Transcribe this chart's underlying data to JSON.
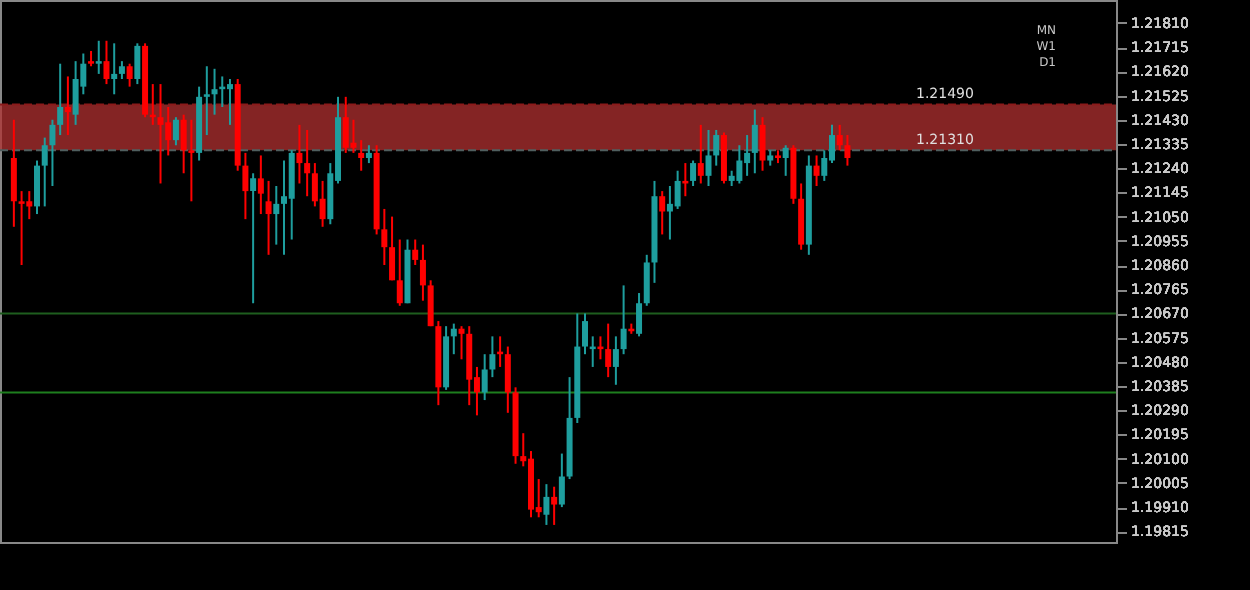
{
  "chart_data": {
    "type": "candlestick",
    "categories": [
      null,
      null,
      null,
      null,
      null,
      null,
      null,
      null,
      null,
      null,
      null,
      null,
      null,
      null,
      null,
      null,
      null,
      null,
      null,
      null,
      null,
      null,
      null,
      null,
      null,
      null,
      null,
      null,
      null,
      null,
      null,
      null,
      null,
      null,
      null,
      null,
      null,
      null,
      null,
      null,
      null,
      null,
      null,
      null,
      null,
      null,
      null,
      null,
      null,
      null,
      null,
      null,
      null,
      null,
      null,
      null,
      null,
      null,
      null,
      null,
      null,
      null,
      null,
      null,
      null,
      null,
      null,
      null,
      null,
      null,
      null,
      null,
      null,
      null,
      null,
      null,
      null,
      null,
      null,
      null,
      null,
      null,
      null,
      null,
      null,
      null,
      null,
      null,
      null,
      null,
      null,
      null,
      null,
      null,
      null,
      null,
      null,
      null,
      null,
      null,
      null,
      null,
      null,
      null,
      null,
      null,
      null,
      null,
      null,
      null,
      null,
      null,
      null,
      null,
      null,
      null,
      null,
      null,
      null,
      null,
      null,
      null,
      null,
      null,
      null,
      null,
      null,
      null,
      null,
      null,
      null,
      null,
      null,
      null,
      null,
      null,
      null,
      null,
      null,
      null,
      null,
      null
    ],
    "ohlc": [
      [
        1.2128,
        1.2143,
        1.2101,
        1.2111
      ],
      [
        1.2111,
        1.2115,
        1.2086,
        1.211
      ],
      [
        1.2111,
        1.2115,
        1.2104,
        1.2109
      ],
      [
        1.2109,
        1.2127,
        1.2106,
        1.2125
      ],
      [
        1.2125,
        1.2136,
        1.2109,
        1.2133
      ],
      [
        1.2133,
        1.2143,
        1.2117,
        1.2141
      ],
      [
        1.2141,
        1.2165,
        1.2137,
        1.2148
      ],
      [
        1.2148,
        1.216,
        1.2137,
        1.2146
      ],
      [
        1.2145,
        1.2166,
        1.2141,
        1.2159
      ],
      [
        1.2156,
        1.2169,
        1.2153,
        1.2165
      ],
      [
        1.2166,
        1.217,
        1.2164,
        1.2165
      ],
      [
        1.2165,
        1.2174,
        1.2161,
        1.2166
      ],
      [
        1.2166,
        1.2174,
        1.2157,
        1.2159
      ],
      [
        1.2159,
        1.2173,
        1.2153,
        1.2161
      ],
      [
        1.2161,
        1.2166,
        1.2159,
        1.2164
      ],
      [
        1.2164,
        1.2165,
        1.2156,
        1.2159
      ],
      [
        1.2159,
        1.2173,
        1.2157,
        1.2172
      ],
      [
        1.2172,
        1.2173,
        1.2144,
        1.2145
      ],
      [
        1.2145,
        1.2157,
        1.2141,
        1.2144
      ],
      [
        1.2144,
        1.2157,
        1.2118,
        1.2141
      ],
      [
        1.2142,
        1.2148,
        1.2129,
        1.2135
      ],
      [
        1.2135,
        1.2144,
        1.2133,
        1.2143
      ],
      [
        1.2143,
        1.2145,
        1.2122,
        1.2131
      ],
      [
        1.2131,
        1.2143,
        1.2111,
        1.213
      ],
      [
        1.213,
        1.2156,
        1.2127,
        1.2152
      ],
      [
        1.2152,
        1.2164,
        1.2137,
        1.2153
      ],
      [
        1.2153,
        1.2163,
        1.2145,
        1.2155
      ],
      [
        1.2155,
        1.216,
        1.2148,
        1.2156
      ],
      [
        1.2155,
        1.2159,
        1.2141,
        1.2157
      ],
      [
        1.2157,
        1.2159,
        1.2123,
        1.2125
      ],
      [
        1.2125,
        1.213,
        1.2104,
        1.2115
      ],
      [
        1.2115,
        1.2122,
        1.2071,
        1.212
      ],
      [
        1.212,
        1.2129,
        1.2106,
        1.2114
      ],
      [
        1.2111,
        1.2119,
        1.209,
        1.2106
      ],
      [
        1.2106,
        1.2117,
        1.2094,
        1.211
      ],
      [
        1.211,
        1.2127,
        1.209,
        1.2113
      ],
      [
        1.2112,
        1.2131,
        1.2096,
        1.213
      ],
      [
        1.213,
        1.2141,
        1.2118,
        1.2126
      ],
      [
        1.2126,
        1.2139,
        1.2113,
        1.2122
      ],
      [
        1.2122,
        1.2126,
        1.2109,
        1.2111
      ],
      [
        1.2112,
        1.2119,
        1.2101,
        1.2104
      ],
      [
        1.2104,
        1.2126,
        1.2102,
        1.2122
      ],
      [
        1.2119,
        1.2152,
        1.2118,
        1.2144
      ],
      [
        1.2144,
        1.2152,
        1.213,
        1.2132
      ],
      [
        1.2134,
        1.2143,
        1.213,
        1.2132
      ],
      [
        1.213,
        1.2135,
        1.2123,
        1.2128
      ],
      [
        1.2128,
        1.2133,
        1.2126,
        1.213
      ],
      [
        1.213,
        1.2133,
        1.2098,
        1.21
      ],
      [
        1.21,
        1.2108,
        1.2086,
        1.2093
      ],
      [
        1.2093,
        1.2105,
        1.208,
        1.208
      ],
      [
        1.208,
        1.2096,
        1.207,
        1.2071
      ],
      [
        1.2071,
        1.2096,
        1.2071,
        1.2092
      ],
      [
        1.2092,
        1.2096,
        1.2086,
        1.2088
      ],
      [
        1.2088,
        1.2094,
        1.2072,
        1.2078
      ],
      [
        1.2078,
        1.208,
        1.2062,
        1.2062
      ],
      [
        1.2062,
        1.2064,
        1.2031,
        1.2038
      ],
      [
        1.2038,
        1.2062,
        1.2037,
        1.2058
      ],
      [
        1.2058,
        1.2063,
        1.2051,
        1.2061
      ],
      [
        1.2061,
        1.2062,
        1.2049,
        1.2059
      ],
      [
        1.2059,
        1.2062,
        1.2031,
        1.2041
      ],
      [
        1.2042,
        1.2046,
        1.2027,
        1.2036
      ],
      [
        1.2036,
        1.2051,
        1.2033,
        1.2045
      ],
      [
        1.2045,
        1.2058,
        1.2042,
        1.2051
      ],
      [
        1.2052,
        1.2058,
        1.2046,
        1.2051
      ],
      [
        1.2051,
        1.2054,
        1.2028,
        1.2036
      ],
      [
        1.2036,
        1.2038,
        1.2008,
        1.2011
      ],
      [
        1.2011,
        1.202,
        1.2007,
        1.2009
      ],
      [
        1.201,
        1.2013,
        1.1987,
        1.199
      ],
      [
        1.1991,
        1.2002,
        1.1987,
        1.1989
      ],
      [
        1.1988,
        1.2,
        1.1984,
        1.1995
      ],
      [
        1.1995,
        1.1999,
        1.1984,
        1.1992
      ],
      [
        1.1992,
        1.2012,
        1.1991,
        1.2003
      ],
      [
        1.2003,
        1.2042,
        1.2002,
        1.2026
      ],
      [
        1.2026,
        1.2067,
        1.2024,
        1.2054
      ],
      [
        1.2054,
        1.2067,
        1.2051,
        1.2064
      ],
      [
        1.2053,
        1.2058,
        1.2046,
        1.2054
      ],
      [
        1.2054,
        1.2058,
        1.2049,
        1.2053
      ],
      [
        1.2053,
        1.2063,
        1.2042,
        1.2046
      ],
      [
        1.2046,
        1.2058,
        1.2039,
        1.2053
      ],
      [
        1.2053,
        1.2078,
        1.2051,
        1.2061
      ],
      [
        1.2061,
        1.2063,
        1.2059,
        1.206
      ],
      [
        1.2059,
        1.2075,
        1.2058,
        1.2071
      ],
      [
        1.2071,
        1.209,
        1.207,
        1.2087
      ],
      [
        1.2087,
        1.2119,
        1.2079,
        1.2113
      ],
      [
        1.2113,
        1.2115,
        1.2098,
        1.2107
      ],
      [
        1.2107,
        1.2117,
        1.2096,
        1.211
      ],
      [
        1.2109,
        1.2123,
        1.2108,
        1.2119
      ],
      [
        1.2119,
        1.2126,
        1.2113,
        1.2118
      ],
      [
        1.2119,
        1.2127,
        1.2117,
        1.2126
      ],
      [
        1.2126,
        1.2141,
        1.2118,
        1.2121
      ],
      [
        1.2121,
        1.2139,
        1.2117,
        1.2129
      ],
      [
        1.2129,
        1.2139,
        1.2125,
        1.2137
      ],
      [
        1.2137,
        1.2138,
        1.2118,
        1.2119
      ],
      [
        1.2119,
        1.2123,
        1.2117,
        1.2121
      ],
      [
        1.2119,
        1.2133,
        1.2118,
        1.2127
      ],
      [
        1.2126,
        1.2137,
        1.2121,
        1.213
      ],
      [
        1.213,
        1.2147,
        1.2122,
        1.2141
      ],
      [
        1.2141,
        1.2144,
        1.2123,
        1.2127
      ],
      [
        1.2127,
        1.2131,
        1.2125,
        1.2129
      ],
      [
        1.2129,
        1.2131,
        1.2126,
        1.2128
      ],
      [
        1.2128,
        1.2133,
        1.2121,
        1.2132
      ],
      [
        1.2132,
        1.2133,
        1.211,
        1.2112
      ],
      [
        1.2112,
        1.2118,
        1.2092,
        1.2094
      ],
      [
        1.2094,
        1.2129,
        1.209,
        1.2125
      ],
      [
        1.2125,
        1.2129,
        1.2117,
        1.2121
      ],
      [
        1.2121,
        1.2131,
        1.2119,
        1.2128
      ],
      [
        1.2127,
        1.2141,
        1.2126,
        1.2137
      ],
      [
        1.2137,
        1.2141,
        1.2131,
        1.2133
      ],
      [
        1.2133,
        1.2137,
        1.2125,
        1.2128
      ],
      null,
      null,
      null,
      null,
      null,
      null,
      null,
      null,
      null,
      null,
      null,
      null,
      null,
      null,
      null,
      null,
      null,
      null,
      null,
      null,
      null,
      null,
      null,
      null,
      null,
      null,
      null,
      null,
      null,
      null,
      null,
      null,
      null
    ],
    "colors": [
      "#ff0000",
      "#ff0000",
      "#ff0000",
      "#1e9e9e",
      "#1e9e9e",
      "#1e9e9e",
      "#1e9e9e",
      "#ff0000",
      "#1e9e9e",
      "#1e9e9e",
      "#ff0000",
      "#1e9e9e",
      "#ff0000",
      "#1e9e9e",
      "#1e9e9e",
      "#ff0000",
      "#1e9e9e",
      "#ff0000",
      "#ff0000",
      "#ff0000",
      "#ff0000",
      "#1e9e9e",
      "#ff0000",
      "#ff0000",
      "#1e9e9e",
      "#1e9e9e",
      "#1e9e9e",
      "#1e9e9e",
      "#1e9e9e",
      "#ff0000",
      "#ff0000",
      "#1e9e9e",
      "#ff0000",
      "#ff0000",
      "#1e9e9e",
      "#1e9e9e",
      "#1e9e9e",
      "#ff0000",
      "#ff0000",
      "#ff0000",
      "#ff0000",
      "#1e9e9e",
      "#1e9e9e",
      "#ff0000",
      "#ff0000",
      "#ff0000",
      "#1e9e9e",
      "#ff0000",
      "#ff0000",
      "#ff0000",
      "#ff0000",
      "#1e9e9e",
      "#ff0000",
      "#ff0000",
      "#ff0000",
      "#ff0000",
      "#1e9e9e",
      "#1e9e9e",
      "#ff0000",
      "#ff0000",
      "#ff0000",
      "#1e9e9e",
      "#1e9e9e",
      "#ff0000",
      "#ff0000",
      "#ff0000",
      "#ff0000",
      "#ff0000",
      "#ff0000",
      "#1e9e9e",
      "#ff0000",
      "#1e9e9e",
      "#1e9e9e",
      "#1e9e9e",
      "#1e9e9e",
      "#1e9e9e",
      "#ff0000",
      "#ff0000",
      "#1e9e9e",
      "#1e9e9e",
      "#ff0000",
      "#1e9e9e",
      "#1e9e9e",
      "#1e9e9e",
      "#ff0000",
      "#1e9e9e",
      "#1e9e9e",
      "#ff0000",
      "#1e9e9e",
      "#ff0000",
      "#1e9e9e",
      "#1e9e9e",
      "#ff0000",
      "#1e9e9e",
      "#1e9e9e",
      "#1e9e9e",
      "#1e9e9e",
      "#ff0000",
      "#1e9e9e",
      "#ff0000",
      "#1e9e9e",
      "#ff0000",
      "#ff0000",
      "#1e9e9e",
      "#ff0000",
      "#1e9e9e",
      "#1e9e9e",
      "#ff0000",
      "#ff0000",
      null,
      null,
      null,
      null,
      null,
      null,
      null,
      null,
      null,
      null,
      null,
      null,
      null,
      null,
      null,
      null,
      null,
      null,
      null,
      null,
      null,
      null,
      null,
      null,
      null,
      null,
      null,
      null,
      null,
      null,
      null,
      null,
      null
    ],
    "ylim": [
      1.19773,
      1.219
    ],
    "yticks": [
      1.19815,
      {
        "value": 1.1991,
        "label": "1.19910"
      },
      1.20005,
      {
        "value": 1.201,
        "label": "1.20100"
      },
      1.20195,
      {
        "value": 1.2029,
        "label": "1.20290"
      },
      1.20385,
      {
        "value": 1.2048,
        "label": "1.20480"
      },
      1.20575,
      {
        "value": 1.2067,
        "label": "1.20670"
      },
      1.20765,
      {
        "value": 1.2086,
        "label": "1.20860"
      },
      1.20955,
      {
        "value": 1.2105,
        "label": "1.21050"
      },
      1.21145,
      {
        "value": 1.2124,
        "label": "1.21240"
      },
      1.21335,
      {
        "value": 1.2143,
        "label": "1.21430"
      },
      1.21525,
      {
        "value": 1.2162,
        "label": "1.21620"
      },
      1.21715,
      {
        "value": 1.2181,
        "label": "1.21810"
      }
    ],
    "ref_lines": [
      {
        "axis": "y",
        "value": 1.2149,
        "label": "1.21490",
        "color": "#8b1a1a",
        "line_style": "dashed"
      },
      {
        "axis": "y",
        "value": 1.2131,
        "label": "1.21310",
        "color": "#4f5f5f",
        "line_style": "dashed"
      },
      {
        "axis": "y",
        "value": 1.2067,
        "color": "#1e5e1e"
      },
      {
        "axis": "y",
        "value": 1.2036,
        "color": "#1e7e1e"
      }
    ],
    "bands": [
      {
        "axis": "y",
        "from": 1.2131,
        "to": 1.2149,
        "color": "#b03030"
      }
    ],
    "annotations": [
      "MN",
      "W1",
      "D1"
    ]
  }
}
